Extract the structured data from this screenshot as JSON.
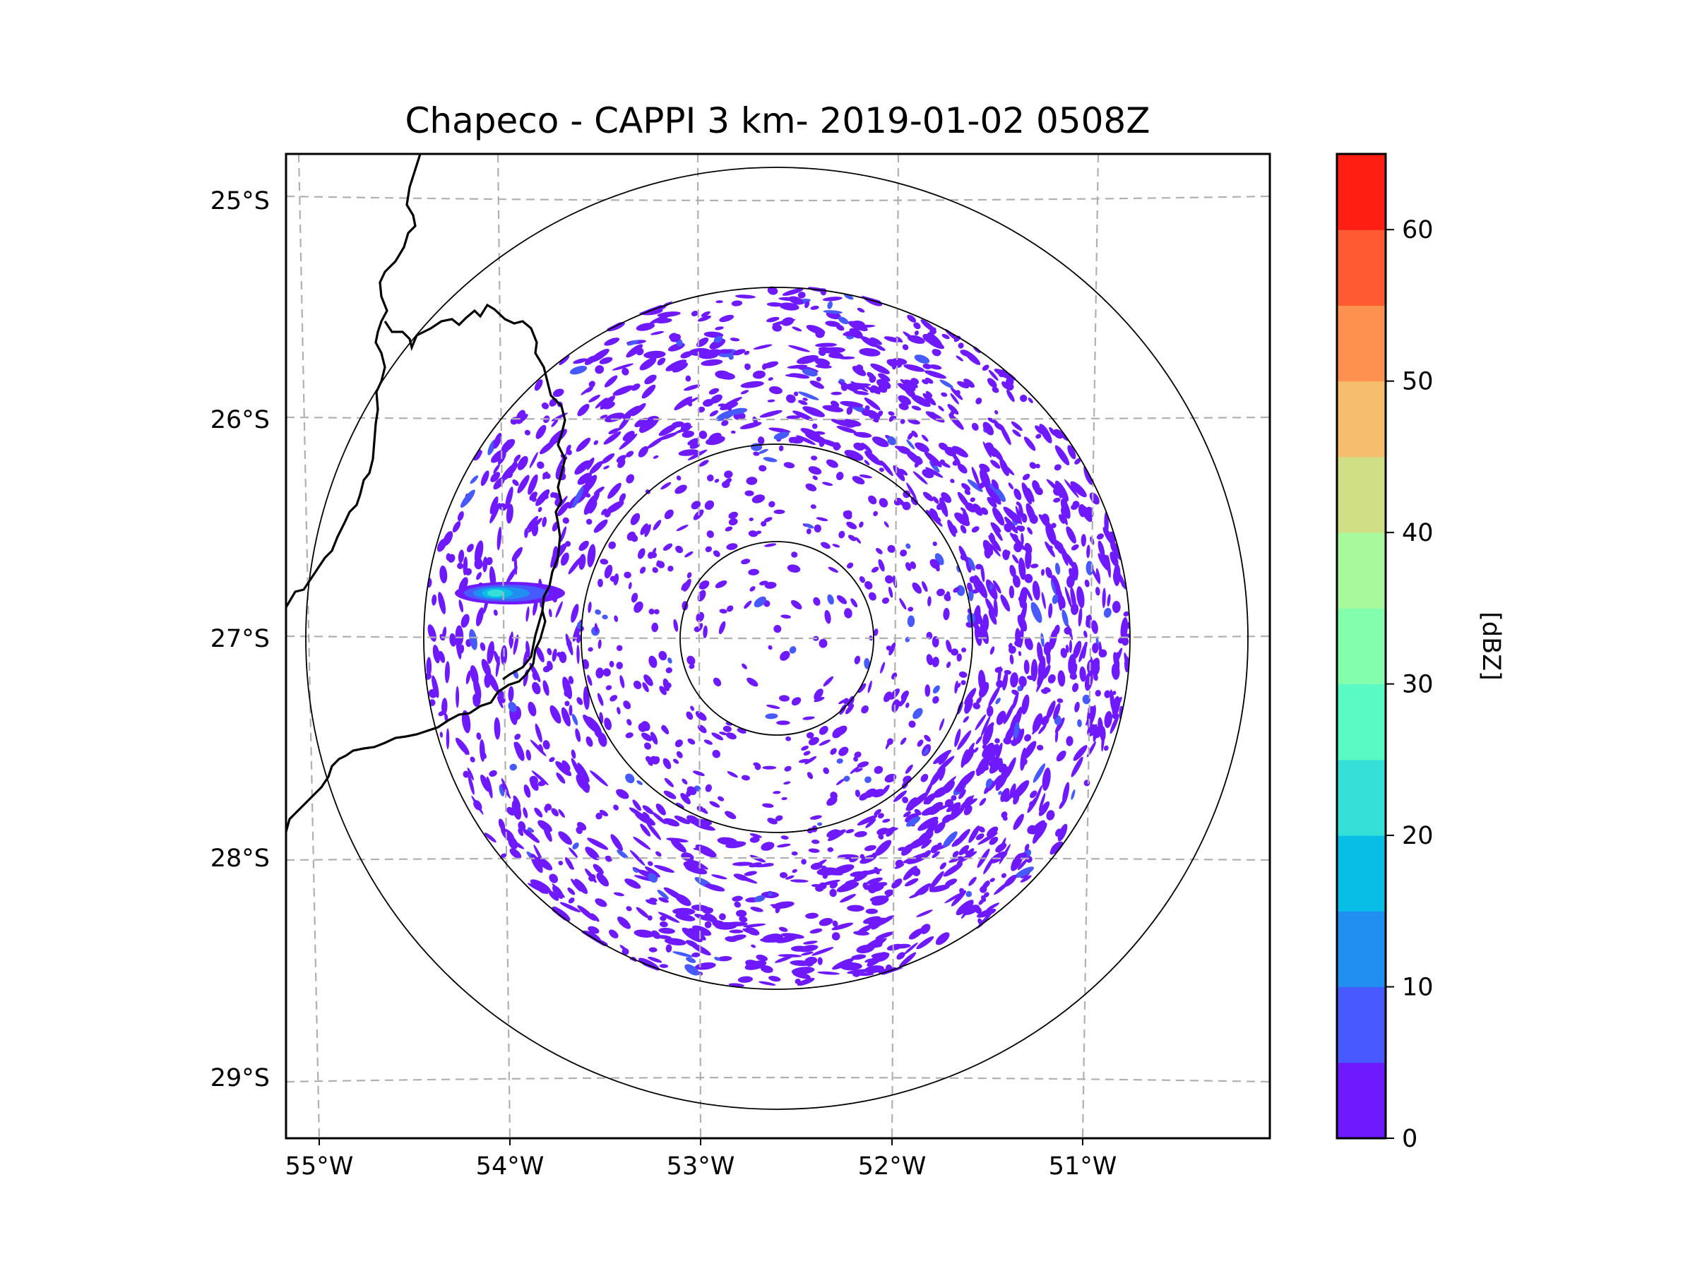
{
  "chart_data": {
    "type": "heatmap",
    "subtype": "radar-ppi-map",
    "title": "Chapeco - CAPPI 3 km- 2019-01-02 0508Z",
    "radar_site": "Chapeco",
    "product": "CAPPI 3 km",
    "datetime": "2019-01-02 0508Z",
    "radar_center": {
      "lon": -52.6,
      "lat": -27.03
    },
    "range_rings_km": [
      100,
      200,
      300,
      400
    ],
    "data_extent_km": 300,
    "xaxis": {
      "ticks": [
        -55,
        -54,
        -53,
        -52,
        -51
      ],
      "tick_labels": [
        "55°W",
        "54°W",
        "53°W",
        "52°W",
        "51°W"
      ],
      "xlim": [
        -55.2,
        -50.05
      ]
    },
    "yaxis": {
      "ticks": [
        -25,
        -26,
        -27,
        -28,
        -29
      ],
      "tick_labels": [
        "25°S",
        "26°S",
        "27°S",
        "28°S",
        "29°S"
      ],
      "ylim": [
        -29.3,
        -24.8
      ]
    },
    "grid": true,
    "grid_style": "dashed-gray",
    "colorbar": {
      "label": "[dBZ]",
      "placement": "right",
      "min": 0,
      "max": 65,
      "bin_size": 5,
      "ticks": [
        0,
        10,
        20,
        30,
        40,
        50,
        60
      ],
      "tick_labels": [
        "0",
        "10",
        "20",
        "30",
        "40",
        "50",
        "60"
      ],
      "colors": [
        "#6e19ff",
        "#465aff",
        "#208ff0",
        "#08bde6",
        "#35e0d8",
        "#5afac4",
        "#82feac",
        "#a7f99b",
        "#d0df86",
        "#f5bd6c",
        "#ff9150",
        "#ff5a32",
        "#ff1f12"
      ]
    },
    "echoes": [
      {
        "description": "widespread weak clutter/echoes",
        "dbz_range": [
          0,
          10
        ],
        "coverage": "ring 100-300 km, denser NE and SE"
      },
      {
        "description": "elongated echo west of radar near border",
        "lon": -54.1,
        "lat": -26.8,
        "dbz_max": 25
      }
    ],
    "boundaries": "state/country borders (black lines) on western side"
  }
}
